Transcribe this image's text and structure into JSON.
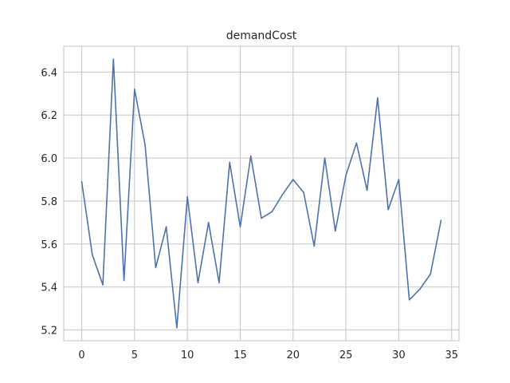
{
  "chart_data": {
    "type": "line",
    "title": "demandCost",
    "xlabel": "",
    "ylabel": "",
    "xlim": [
      -1.7,
      35.7
    ],
    "ylim": [
      5.15,
      6.52
    ],
    "xticks": [
      0,
      5,
      10,
      15,
      20,
      25,
      30,
      35
    ],
    "yticks": [
      5.2,
      5.4,
      5.6,
      5.8,
      6.0,
      6.2,
      6.4
    ],
    "grid": true,
    "colors": {
      "line": "#4c72b0",
      "grid": "#cccccc",
      "axes": "#cccccc",
      "text": "#262626"
    },
    "series": [
      {
        "x": [
          0,
          1,
          2,
          3,
          4,
          5,
          6,
          7,
          8,
          9,
          10,
          11,
          12,
          13,
          14,
          15,
          16,
          17,
          18,
          19,
          20,
          21,
          22,
          23,
          24,
          25,
          26,
          27,
          28,
          29,
          30,
          31,
          32,
          33,
          34
        ],
        "values": [
          5.89,
          5.55,
          5.41,
          6.46,
          5.43,
          6.32,
          6.06,
          5.49,
          5.68,
          5.21,
          5.82,
          5.42,
          5.7,
          5.42,
          5.98,
          5.68,
          6.01,
          5.72,
          5.75,
          5.83,
          5.9,
          5.84,
          5.59,
          6.0,
          5.66,
          5.92,
          6.07,
          5.85,
          6.28,
          5.76,
          5.9,
          5.34,
          5.39,
          5.46,
          5.71
        ]
      }
    ]
  }
}
